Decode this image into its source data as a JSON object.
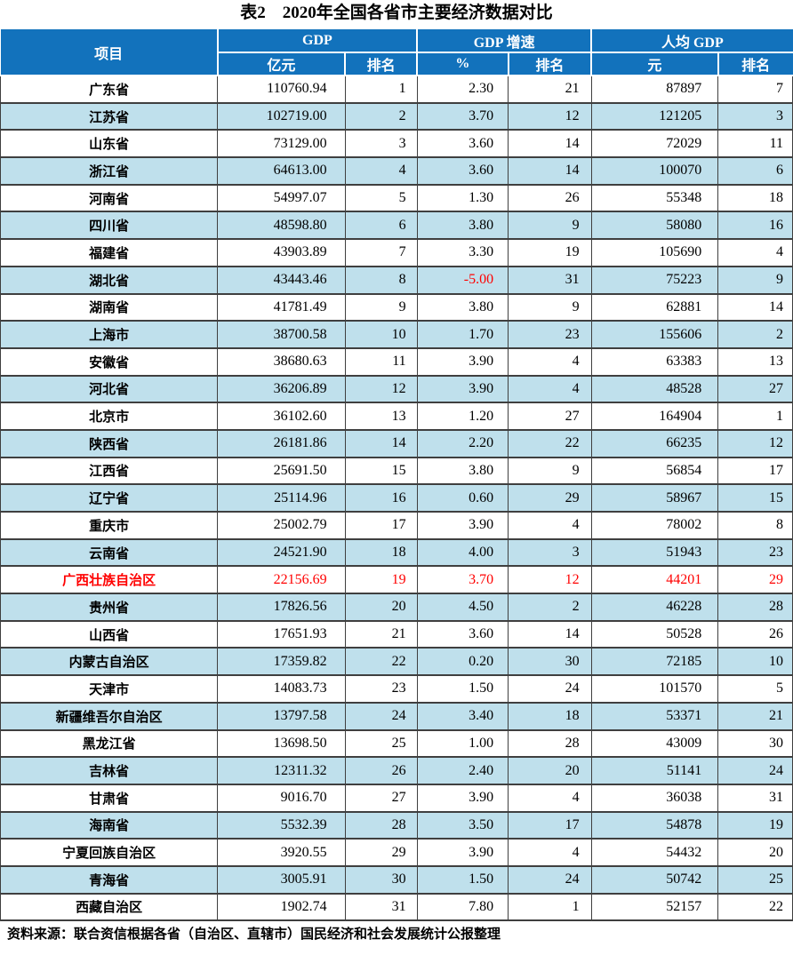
{
  "title": "表2　2020年全国各省市主要经济数据对比",
  "footer": "资料来源：联合资信根据各省（自治区、直辖市）国民经济和社会发展统计公报整理",
  "colors": {
    "header_bg": "#1272BC",
    "stripe_bg": "#BFE0EC",
    "accent_red": "#FF0000"
  },
  "table": {
    "header": {
      "item": "项目",
      "groups": [
        {
          "label": "GDP",
          "sub": [
            "亿元",
            "排名"
          ]
        },
        {
          "label": "GDP 增速",
          "sub": [
            "%",
            "排名"
          ]
        },
        {
          "label": "人均 GDP",
          "sub": [
            "元",
            "排名"
          ]
        }
      ]
    },
    "rows": [
      {
        "province": "广东省",
        "gdp": "110760.94",
        "gdp_rank": "1",
        "growth": "2.30",
        "growth_rank": "21",
        "per_capita": "87897",
        "per_capita_rank": "7"
      },
      {
        "province": "江苏省",
        "gdp": "102719.00",
        "gdp_rank": "2",
        "growth": "3.70",
        "growth_rank": "12",
        "per_capita": "121205",
        "per_capita_rank": "3"
      },
      {
        "province": "山东省",
        "gdp": "73129.00",
        "gdp_rank": "3",
        "growth": "3.60",
        "growth_rank": "14",
        "per_capita": "72029",
        "per_capita_rank": "11"
      },
      {
        "province": "浙江省",
        "gdp": "64613.00",
        "gdp_rank": "4",
        "growth": "3.60",
        "growth_rank": "14",
        "per_capita": "100070",
        "per_capita_rank": "6"
      },
      {
        "province": "河南省",
        "gdp": "54997.07",
        "gdp_rank": "5",
        "growth": "1.30",
        "growth_rank": "26",
        "per_capita": "55348",
        "per_capita_rank": "18"
      },
      {
        "province": "四川省",
        "gdp": "48598.80",
        "gdp_rank": "6",
        "growth": "3.80",
        "growth_rank": "9",
        "per_capita": "58080",
        "per_capita_rank": "16"
      },
      {
        "province": "福建省",
        "gdp": "43903.89",
        "gdp_rank": "7",
        "growth": "3.30",
        "growth_rank": "19",
        "per_capita": "105690",
        "per_capita_rank": "4"
      },
      {
        "province": "湖北省",
        "gdp": "43443.46",
        "gdp_rank": "8",
        "growth": "-5.00",
        "growth_rank": "31",
        "per_capita": "75223",
        "per_capita_rank": "9",
        "growth_red": true
      },
      {
        "province": "湖南省",
        "gdp": "41781.49",
        "gdp_rank": "9",
        "growth": "3.80",
        "growth_rank": "9",
        "per_capita": "62881",
        "per_capita_rank": "14"
      },
      {
        "province": "上海市",
        "gdp": "38700.58",
        "gdp_rank": "10",
        "growth": "1.70",
        "growth_rank": "23",
        "per_capita": "155606",
        "per_capita_rank": "2"
      },
      {
        "province": "安徽省",
        "gdp": "38680.63",
        "gdp_rank": "11",
        "growth": "3.90",
        "growth_rank": "4",
        "per_capita": "63383",
        "per_capita_rank": "13"
      },
      {
        "province": "河北省",
        "gdp": "36206.89",
        "gdp_rank": "12",
        "growth": "3.90",
        "growth_rank": "4",
        "per_capita": "48528",
        "per_capita_rank": "27"
      },
      {
        "province": "北京市",
        "gdp": "36102.60",
        "gdp_rank": "13",
        "growth": "1.20",
        "growth_rank": "27",
        "per_capita": "164904",
        "per_capita_rank": "1"
      },
      {
        "province": "陕西省",
        "gdp": "26181.86",
        "gdp_rank": "14",
        "growth": "2.20",
        "growth_rank": "22",
        "per_capita": "66235",
        "per_capita_rank": "12"
      },
      {
        "province": "江西省",
        "gdp": "25691.50",
        "gdp_rank": "15",
        "growth": "3.80",
        "growth_rank": "9",
        "per_capita": "56854",
        "per_capita_rank": "17"
      },
      {
        "province": "辽宁省",
        "gdp": "25114.96",
        "gdp_rank": "16",
        "growth": "0.60",
        "growth_rank": "29",
        "per_capita": "58967",
        "per_capita_rank": "15"
      },
      {
        "province": "重庆市",
        "gdp": "25002.79",
        "gdp_rank": "17",
        "growth": "3.90",
        "growth_rank": "4",
        "per_capita": "78002",
        "per_capita_rank": "8"
      },
      {
        "province": "云南省",
        "gdp": "24521.90",
        "gdp_rank": "18",
        "growth": "4.00",
        "growth_rank": "3",
        "per_capita": "51943",
        "per_capita_rank": "23"
      },
      {
        "province": "广西壮族自治区",
        "gdp": "22156.69",
        "gdp_rank": "19",
        "growth": "3.70",
        "growth_rank": "12",
        "per_capita": "44201",
        "per_capita_rank": "29",
        "highlight": true
      },
      {
        "province": "贵州省",
        "gdp": "17826.56",
        "gdp_rank": "20",
        "growth": "4.50",
        "growth_rank": "2",
        "per_capita": "46228",
        "per_capita_rank": "28"
      },
      {
        "province": "山西省",
        "gdp": "17651.93",
        "gdp_rank": "21",
        "growth": "3.60",
        "growth_rank": "14",
        "per_capita": "50528",
        "per_capita_rank": "26"
      },
      {
        "province": "内蒙古自治区",
        "gdp": "17359.82",
        "gdp_rank": "22",
        "growth": "0.20",
        "growth_rank": "30",
        "per_capita": "72185",
        "per_capita_rank": "10"
      },
      {
        "province": "天津市",
        "gdp": "14083.73",
        "gdp_rank": "23",
        "growth": "1.50",
        "growth_rank": "24",
        "per_capita": "101570",
        "per_capita_rank": "5"
      },
      {
        "province": "新疆维吾尔自治区",
        "gdp": "13797.58",
        "gdp_rank": "24",
        "growth": "3.40",
        "growth_rank": "18",
        "per_capita": "53371",
        "per_capita_rank": "21"
      },
      {
        "province": "黑龙江省",
        "gdp": "13698.50",
        "gdp_rank": "25",
        "growth": "1.00",
        "growth_rank": "28",
        "per_capita": "43009",
        "per_capita_rank": "30"
      },
      {
        "province": "吉林省",
        "gdp": "12311.32",
        "gdp_rank": "26",
        "growth": "2.40",
        "growth_rank": "20",
        "per_capita": "51141",
        "per_capita_rank": "24"
      },
      {
        "province": "甘肃省",
        "gdp": "9016.70",
        "gdp_rank": "27",
        "growth": "3.90",
        "growth_rank": "4",
        "per_capita": "36038",
        "per_capita_rank": "31"
      },
      {
        "province": "海南省",
        "gdp": "5532.39",
        "gdp_rank": "28",
        "growth": "3.50",
        "growth_rank": "17",
        "per_capita": "54878",
        "per_capita_rank": "19"
      },
      {
        "province": "宁夏回族自治区",
        "gdp": "3920.55",
        "gdp_rank": "29",
        "growth": "3.90",
        "growth_rank": "4",
        "per_capita": "54432",
        "per_capita_rank": "20"
      },
      {
        "province": "青海省",
        "gdp": "3005.91",
        "gdp_rank": "30",
        "growth": "1.50",
        "growth_rank": "24",
        "per_capita": "50742",
        "per_capita_rank": "25"
      },
      {
        "province": "西藏自治区",
        "gdp": "1902.74",
        "gdp_rank": "31",
        "growth": "7.80",
        "growth_rank": "1",
        "per_capita": "52157",
        "per_capita_rank": "22"
      }
    ]
  }
}
